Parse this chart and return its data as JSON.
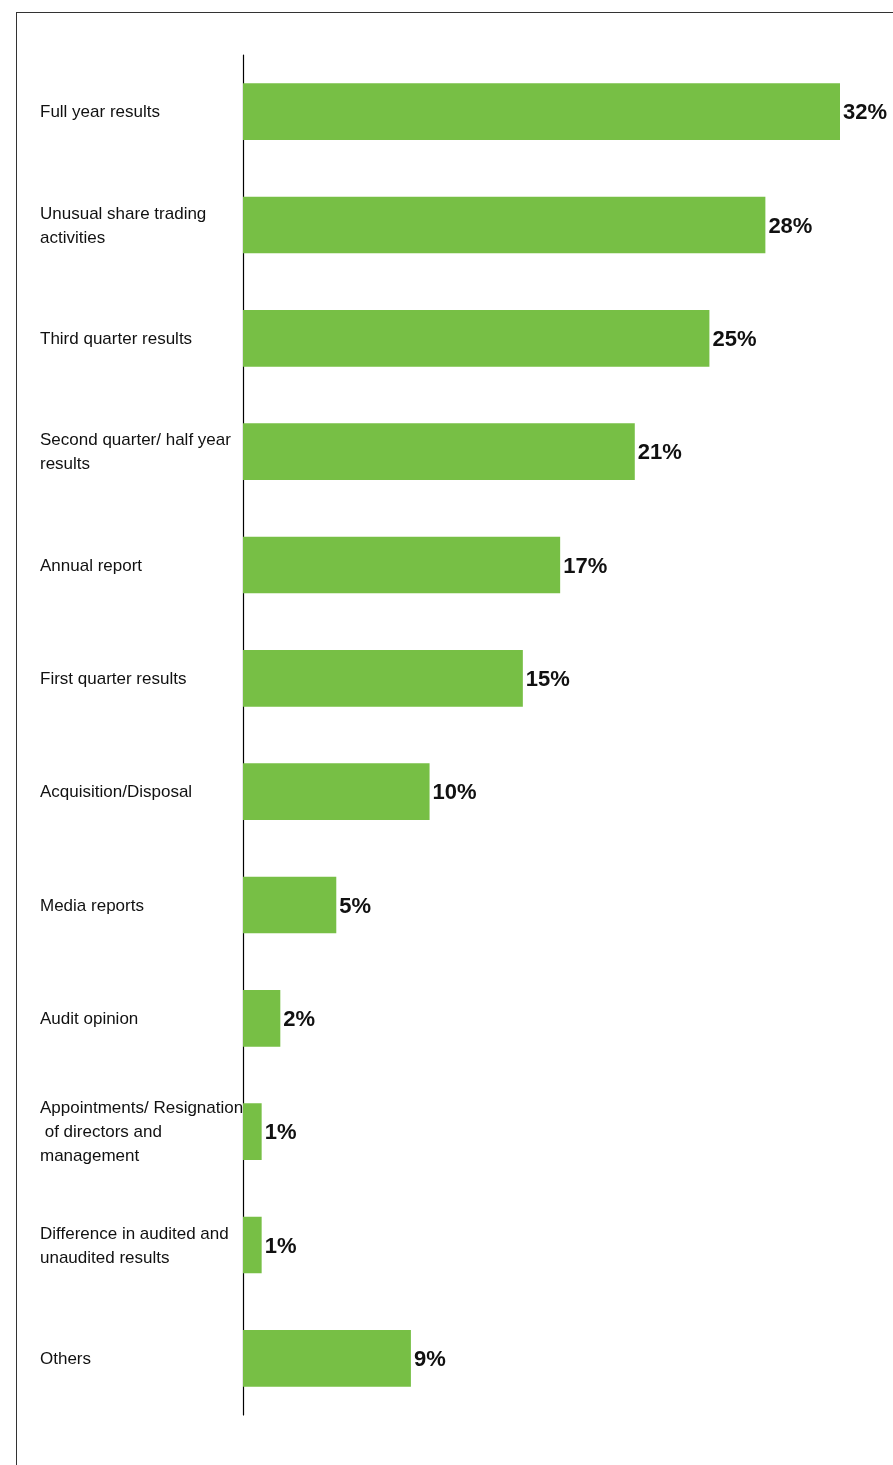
{
  "chart_data": {
    "type": "bar",
    "orientation": "horizontal",
    "categories": [
      "Full year results",
      "Unusual share trading activities",
      "Third quarter results",
      "Second quarter/ half year results",
      "Annual report",
      "First quarter results",
      "Acquisition/Disposal",
      "Media reports",
      "Audit opinion",
      "Appointments/ Resignation of directors and management",
      "Difference in audited and unaudited results",
      "Others"
    ],
    "values": [
      32,
      28,
      25,
      21,
      17,
      15,
      10,
      5,
      2,
      1,
      1,
      9
    ],
    "value_labels": [
      "32%",
      "28%",
      "25%",
      "21%",
      "17%",
      "15%",
      "10%",
      "5%",
      "2%",
      "1%",
      "1%",
      "9%"
    ],
    "color": "#77bf45"
  }
}
